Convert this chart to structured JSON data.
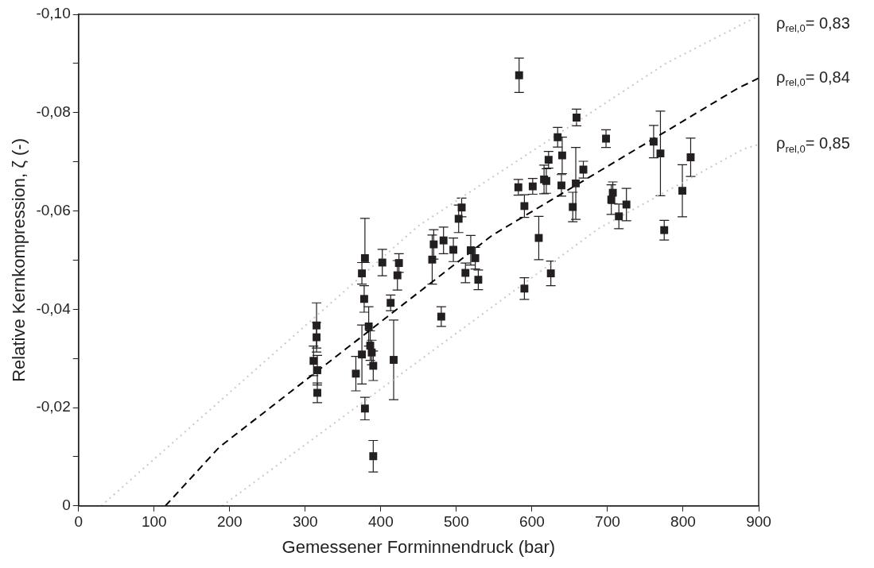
{
  "chart_data": {
    "type": "scatter",
    "xlabel": "Gemessener Forminnendruck (bar)",
    "ylabel": "Relative Kernkompression, ζ (-)",
    "xlim": [
      0,
      900
    ],
    "xticks": [
      0,
      100,
      200,
      300,
      400,
      500,
      600,
      700,
      800,
      900
    ],
    "ylim": [
      0,
      -0.1
    ],
    "yticks": [
      {
        "value": 0,
        "label": "0"
      },
      {
        "value": -0.01,
        "label": null
      },
      {
        "value": -0.02,
        "label": "-0,02"
      },
      {
        "value": -0.03,
        "label": null
      },
      {
        "value": -0.04,
        "label": "-0,04"
      },
      {
        "value": -0.05,
        "label": null
      },
      {
        "value": -0.06,
        "label": "-0,06"
      },
      {
        "value": -0.07,
        "label": null
      },
      {
        "value": -0.08,
        "label": "-0,08"
      },
      {
        "value": -0.09,
        "label": null
      },
      {
        "value": -0.1,
        "label": "-0,10"
      }
    ],
    "grid": false,
    "marker": "square",
    "series": [
      {
        "color": "#231f20",
        "x": [
          315,
          315,
          311,
          316,
          316,
          379,
          375,
          402,
          424,
          422,
          378,
          413,
          384,
          386,
          388,
          375,
          390,
          367,
          417,
          379,
          390,
          583,
          659,
          634,
          640,
          622,
          668,
          582,
          601,
          616,
          619,
          639,
          658,
          654,
          590,
          609,
          625,
          507,
          503,
          470,
          483,
          496,
          519,
          525,
          468,
          512,
          529,
          480,
          590,
          698,
          707,
          705,
          715,
          725,
          761,
          770,
          810,
          799,
          775
        ],
        "values": [
          -0.0367,
          -0.0343,
          -0.0295,
          -0.0276,
          -0.023,
          -0.0504,
          -0.0473,
          -0.0495,
          -0.0494,
          -0.0469,
          -0.0421,
          -0.0413,
          -0.0365,
          -0.0326,
          -0.0312,
          -0.0308,
          -0.0285,
          -0.0269,
          -0.0297,
          -0.0198,
          -0.0101,
          -0.0876,
          -0.079,
          -0.075,
          -0.0713,
          -0.0704,
          -0.0684,
          -0.0648,
          -0.065,
          -0.0664,
          -0.0661,
          -0.0652,
          -0.0656,
          -0.0608,
          -0.061,
          -0.0545,
          -0.0473,
          -0.0607,
          -0.0584,
          -0.0532,
          -0.054,
          -0.0521,
          -0.052,
          -0.0504,
          -0.0501,
          -0.0474,
          -0.046,
          -0.0385,
          -0.0442,
          -0.0747,
          -0.0637,
          -0.0623,
          -0.0589,
          -0.0613,
          -0.0741,
          -0.0717,
          -0.0709,
          -0.0641,
          -0.0561
        ],
        "errors": [
          0.0046,
          0.003,
          0.003,
          0.003,
          0.002,
          [
            -0.0585,
            -0.0495
          ],
          0.0022,
          0.0027,
          0.0019,
          0.003,
          0.0027,
          0.0016,
          0.004,
          0.003,
          0.0025,
          0.006,
          0.003,
          0.0035,
          0.0081,
          0.0023,
          0.0032,
          0.0035,
          0.0017,
          0.002,
          0.0037,
          0.0017,
          0.0017,
          0.0016,
          0.0016,
          0.0029,
          0.0025,
          0.0022,
          0.0073,
          0.003,
          0.0023,
          0.0044,
          0.0025,
          0.0019,
          0.0028,
          0.003,
          0.0027,
          0.0024,
          0.003,
          0.0022,
          0.005,
          0.002,
          0.002,
          0.002,
          0.0022,
          0.0018,
          0.0022,
          0.003,
          0.0025,
          0.0033,
          0.0033,
          0.0086,
          0.0039,
          0.0053,
          0.002
        ]
      },
      {
        "type": "line",
        "name": "ρ$_{rel,0}$= 0,83",
        "color": "#c8c8c8",
        "line_style": "dotted",
        "marker": "none",
        "x": [
          30,
          450,
          777,
          900
        ],
        "values": [
          0,
          -0.057,
          -0.09,
          -0.0997
        ]
      },
      {
        "type": "line",
        "name": "ρ$_{rel,0}$= 0,84",
        "color": "#000000",
        "line_style": "dashed",
        "marker": "none",
        "x": [
          115,
          186,
          547,
          873,
          900
        ],
        "values": [
          0,
          -0.0119,
          -0.055,
          -0.085,
          -0.087
        ]
      },
      {
        "type": "line",
        "name": "ρ$_{rel,0}$= 0,85",
        "color": "#c8c8c8",
        "line_style": "dotted",
        "marker": "none",
        "x": [
          190,
          688,
          880,
          900
        ],
        "values": [
          0,
          -0.0564,
          -0.0726,
          -0.0735
        ]
      }
    ]
  }
}
